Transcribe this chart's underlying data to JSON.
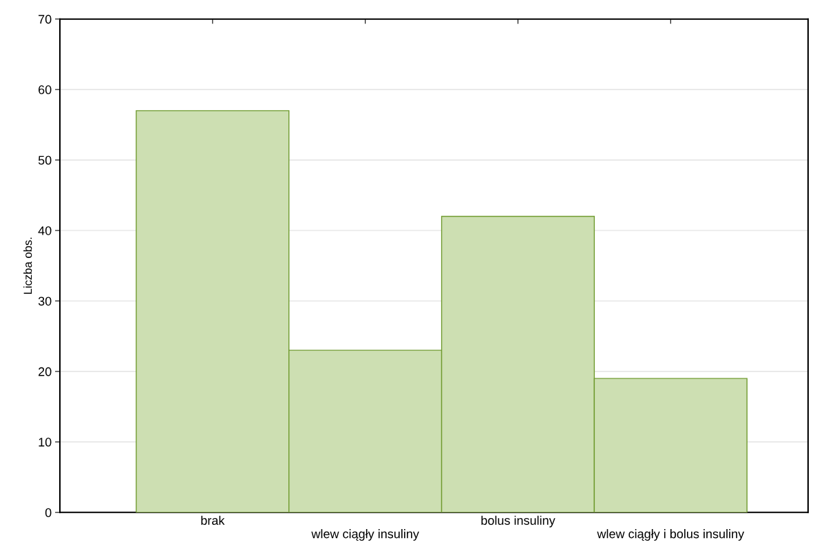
{
  "chart_data": {
    "type": "bar",
    "ylabel": "Liczba obs.",
    "categories": [
      "brak",
      "wlew ciągły insuliny",
      "bolus insuliny",
      "wlew ciągły i bolus insuliny"
    ],
    "values": [
      57,
      23,
      42,
      19
    ],
    "color": "#cddfb2",
    "ylim": [
      0,
      70
    ],
    "yticks": [
      0,
      10,
      20,
      30,
      40,
      50,
      60,
      70
    ],
    "grid": "y"
  }
}
